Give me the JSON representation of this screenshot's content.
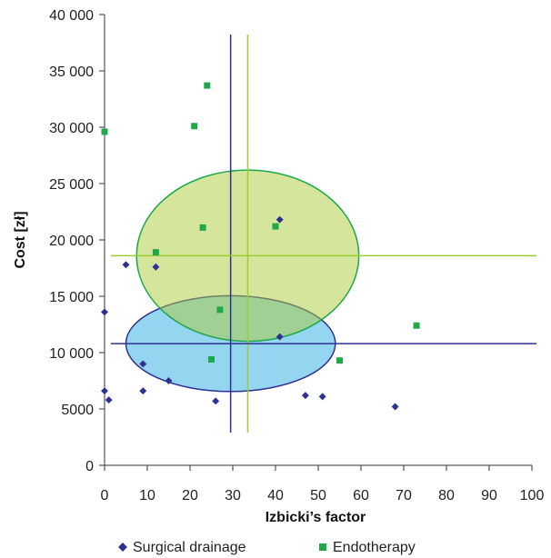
{
  "chart_data": {
    "type": "scatter",
    "xlabel": "Izbicki’s factor",
    "ylabel": "Cost [zł]",
    "xlim": [
      0,
      100
    ],
    "ylim": [
      0,
      40000
    ],
    "x_ticks": [
      "0",
      "10",
      "20",
      "30",
      "40",
      "50",
      "60",
      "70",
      "80",
      "90",
      "100"
    ],
    "y_ticks": [
      "0",
      "5000",
      "10 000",
      "15 000",
      "20 000",
      "25 000",
      "30 000",
      "35 000",
      "40 000"
    ],
    "grid": false,
    "legend_position": "bottom",
    "series": [
      {
        "name": "Surgical drainage",
        "marker": "diamond",
        "color": "#2e3192",
        "points": [
          [
            0,
            13600
          ],
          [
            0,
            6600
          ],
          [
            1,
            5800
          ],
          [
            5,
            17800
          ],
          [
            9,
            9000
          ],
          [
            9,
            6600
          ],
          [
            12,
            17600
          ],
          [
            15,
            7500
          ],
          [
            26,
            5700
          ],
          [
            41,
            21800
          ],
          [
            41,
            11400
          ],
          [
            47,
            6200
          ],
          [
            51,
            6100
          ],
          [
            68,
            5200
          ]
        ]
      },
      {
        "name": "Endotherapy",
        "marker": "square",
        "color": "#1ea84b",
        "points": [
          [
            0,
            29600
          ],
          [
            12,
            18900
          ],
          [
            21,
            30100
          ],
          [
            23,
            21100
          ],
          [
            24,
            33700
          ],
          [
            25,
            9400
          ],
          [
            27,
            13800
          ],
          [
            40,
            21200
          ],
          [
            55,
            9300
          ],
          [
            73,
            12400
          ]
        ]
      }
    ],
    "reference_lines": [
      {
        "orientation": "vertical",
        "value": 29.5,
        "color": "#2e3192"
      },
      {
        "orientation": "vertical",
        "value": 33.5,
        "color": "#9acd32"
      },
      {
        "orientation": "horizontal",
        "value": 10800,
        "color": "#2e3192"
      },
      {
        "orientation": "horizontal",
        "value": 18600,
        "color": "#9acd32"
      }
    ],
    "ellipses": [
      {
        "cx": 29.5,
        "cy": 10800,
        "rx": 24.5,
        "ry": 4250,
        "fill": "#29abe2",
        "fill_opacity": 0.5,
        "stroke": "#2e3192"
      },
      {
        "cx": 33.5,
        "cy": 18600,
        "rx": 26,
        "ry": 7600,
        "fill": "#aecb3a",
        "fill_opacity": 0.5,
        "stroke": "#1ea84b"
      }
    ]
  }
}
